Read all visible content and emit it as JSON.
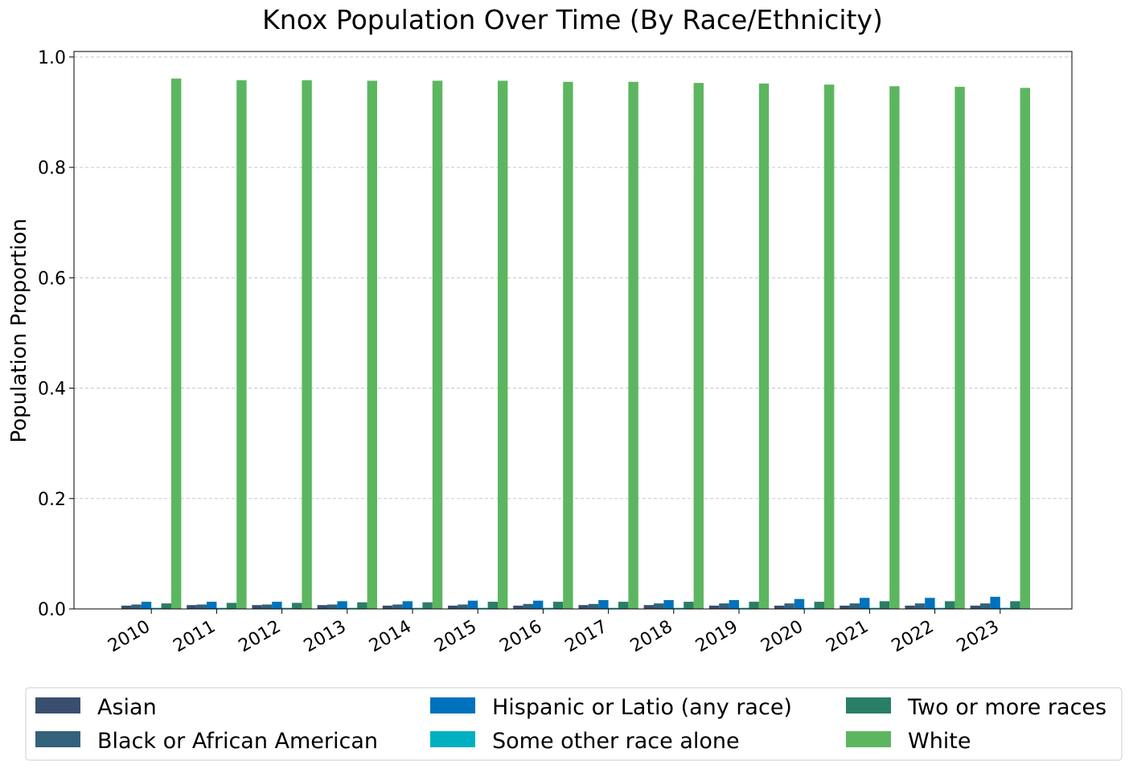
{
  "chart_data": {
    "type": "bar",
    "title": "Knox Population Over Time (By Race/Ethnicity)",
    "xlabel": "",
    "ylabel": "Population Proportion",
    "ylim": [
      0,
      1.01
    ],
    "yticks": [
      "0.0",
      "0.2",
      "0.4",
      "0.6",
      "0.8",
      "1.0"
    ],
    "grid": "horizontal dashed",
    "legend_position": "bottom",
    "categories": [
      "2010",
      "2011",
      "2012",
      "2013",
      "2014",
      "2015",
      "2016",
      "2017",
      "2018",
      "2019",
      "2020",
      "2021",
      "2022",
      "2023"
    ],
    "series": [
      {
        "name": "Asian",
        "color": "#3a4f6f",
        "values": [
          0.006,
          0.007,
          0.007,
          0.007,
          0.006,
          0.006,
          0.006,
          0.007,
          0.007,
          0.006,
          0.006,
          0.006,
          0.006,
          0.006
        ]
      },
      {
        "name": "Black or African American",
        "color": "#33627a",
        "values": [
          0.008,
          0.008,
          0.008,
          0.008,
          0.008,
          0.008,
          0.009,
          0.009,
          0.01,
          0.01,
          0.01,
          0.01,
          0.01,
          0.01
        ]
      },
      {
        "name": "Hispanic or Latio (any race)",
        "color": "#0072bd",
        "values": [
          0.013,
          0.013,
          0.013,
          0.014,
          0.014,
          0.015,
          0.015,
          0.016,
          0.016,
          0.016,
          0.018,
          0.02,
          0.02,
          0.022
        ]
      },
      {
        "name": "Some other race alone",
        "color": "#00b0c0",
        "values": [
          0.002,
          0.002,
          0.002,
          0.002,
          0.002,
          0.002,
          0.002,
          0.002,
          0.002,
          0.002,
          0.002,
          0.002,
          0.002,
          0.002
        ]
      },
      {
        "name": "Two or more races",
        "color": "#2a7e66",
        "values": [
          0.01,
          0.011,
          0.011,
          0.012,
          0.012,
          0.013,
          0.013,
          0.013,
          0.013,
          0.013,
          0.013,
          0.014,
          0.014,
          0.014
        ]
      },
      {
        "name": "White",
        "color": "#5cb660",
        "values": [
          0.961,
          0.958,
          0.958,
          0.957,
          0.957,
          0.957,
          0.955,
          0.955,
          0.953,
          0.952,
          0.95,
          0.947,
          0.946,
          0.944
        ]
      }
    ]
  }
}
